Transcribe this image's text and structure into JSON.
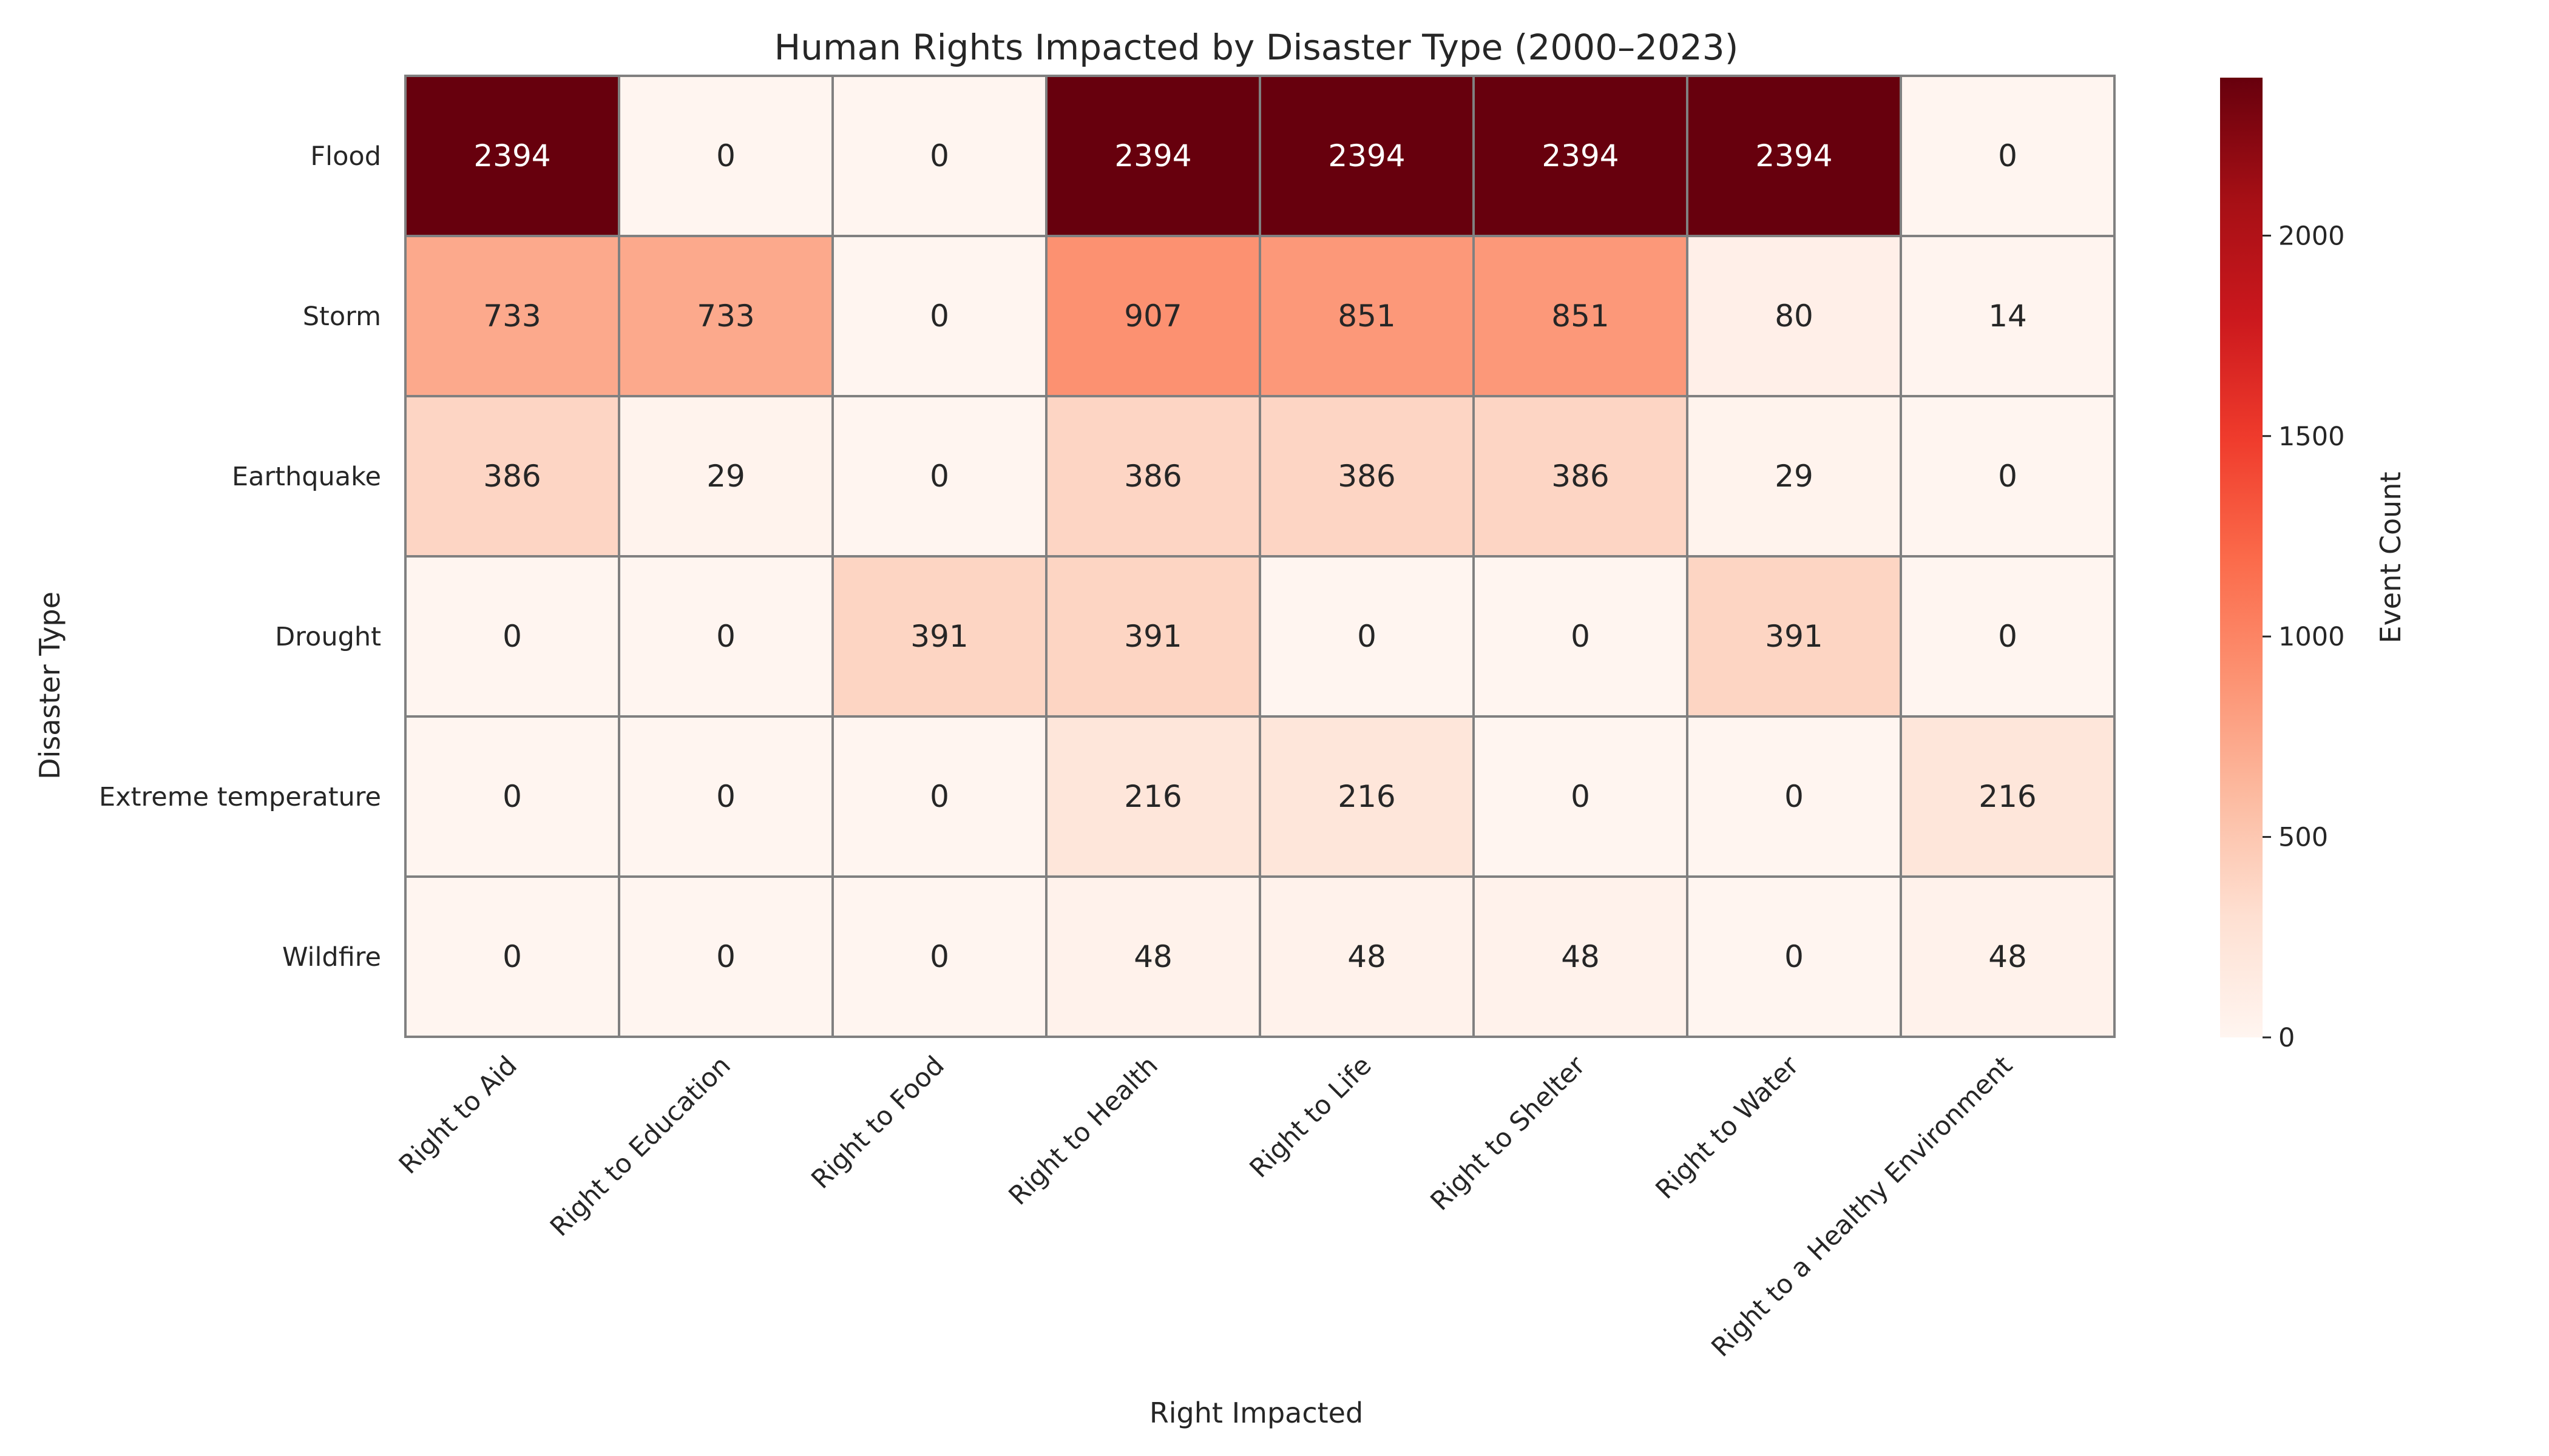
{
  "chart_data": {
    "type": "heatmap",
    "title": "Human Rights Impacted by Disaster Type (2000–2023)",
    "xlabel": "Right Impacted",
    "ylabel": "Disaster Type",
    "colorbar_label": "Event Count",
    "colorbar_ticks": [
      "0",
      "500",
      "1000",
      "1500",
      "2000"
    ],
    "colorbar_range": [
      0,
      2394
    ],
    "colormap": "Reds",
    "columns": [
      "Right to Aid",
      "Right to Education",
      "Right to Food",
      "Right to Health",
      "Right to Life",
      "Right to Shelter",
      "Right to Water",
      "Right to a Healthy Environment"
    ],
    "rows": [
      "Flood",
      "Storm",
      "Earthquake",
      "Drought",
      "Extreme temperature",
      "Wildfire"
    ],
    "values": [
      [
        2394,
        0,
        0,
        2394,
        2394,
        2394,
        2394,
        0
      ],
      [
        733,
        733,
        0,
        907,
        851,
        851,
        80,
        14
      ],
      [
        386,
        29,
        0,
        386,
        386,
        386,
        29,
        0
      ],
      [
        0,
        0,
        391,
        391,
        0,
        0,
        391,
        0
      ],
      [
        0,
        0,
        0,
        216,
        216,
        0,
        0,
        216
      ],
      [
        0,
        0,
        0,
        48,
        48,
        48,
        0,
        48
      ]
    ],
    "labels": [
      [
        "2394",
        "0",
        "0",
        "2394",
        "2394",
        "2394",
        "2394",
        "0"
      ],
      [
        "733",
        "733",
        "0",
        "907",
        "851",
        "851",
        "80",
        "14"
      ],
      [
        "386",
        "29",
        "0",
        "386",
        "386",
        "386",
        "29",
        "0"
      ],
      [
        "0",
        "0",
        "391",
        "391",
        "0",
        "0",
        "391",
        "0"
      ],
      [
        "0",
        "0",
        "0",
        "216",
        "216",
        "0",
        "0",
        "216"
      ],
      [
        "0",
        "0",
        "0",
        "48",
        "48",
        "48",
        "0",
        "48"
      ]
    ]
  }
}
